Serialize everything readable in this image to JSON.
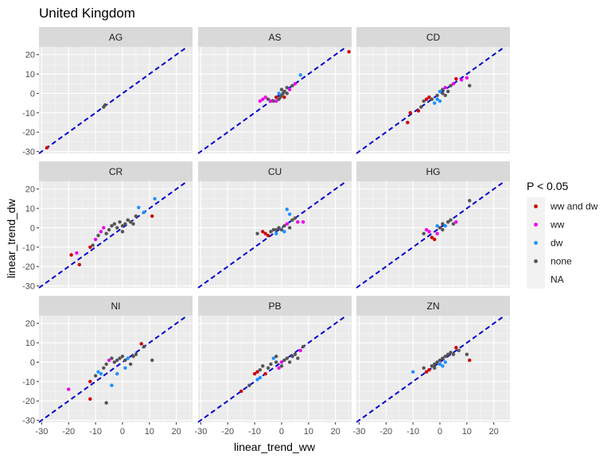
{
  "chart_data": {
    "type": "scatter",
    "title": "United Kingdom",
    "xlabel": "linear_trend_ww",
    "ylabel": "linear_trend_dw",
    "xlim": [
      -31,
      26
    ],
    "ylim": [
      -31,
      24
    ],
    "xticks": [
      -30,
      -20,
      -10,
      0,
      10,
      20
    ],
    "yticks": [
      -30,
      -20,
      -10,
      0,
      10,
      20
    ],
    "reference_line": {
      "slope": 1,
      "intercept": 0,
      "style": "dashed",
      "color": "#0000cc"
    },
    "grid": true,
    "legend": {
      "title": "P < 0.05",
      "position": "right",
      "entries": [
        {
          "key": "ww_and_dw",
          "label": "ww and dw",
          "color": "#cc0000"
        },
        {
          "key": "ww",
          "label": "ww",
          "color": "#ee00ee"
        },
        {
          "key": "dw",
          "label": "dw",
          "color": "#1e90ff"
        },
        {
          "key": "none",
          "label": "none",
          "color": "#555555"
        },
        {
          "key": "na",
          "label": "NA",
          "color": ""
        }
      ]
    },
    "panels": [
      {
        "label": "AG",
        "points": [
          {
            "x": -28,
            "y": -28,
            "g": "ww_and_dw"
          },
          {
            "x": -7,
            "y": -7,
            "g": "none"
          },
          {
            "x": -6.5,
            "y": -6,
            "g": "none"
          }
        ]
      },
      {
        "label": "AS",
        "points": [
          {
            "x": 25,
            "y": 21.5,
            "g": "ww_and_dw"
          },
          {
            "x": 7,
            "y": 9.5,
            "g": "dw"
          },
          {
            "x": 5,
            "y": 5,
            "g": "ww"
          },
          {
            "x": 4,
            "y": 4,
            "g": "none"
          },
          {
            "x": 3,
            "y": 2,
            "g": "ww"
          },
          {
            "x": 2,
            "y": 3,
            "g": "none"
          },
          {
            "x": 1,
            "y": 1,
            "g": "none"
          },
          {
            "x": 0.5,
            "y": 0,
            "g": "none"
          },
          {
            "x": 0,
            "y": -1,
            "g": "none"
          },
          {
            "x": -0.5,
            "y": -2,
            "g": "none"
          },
          {
            "x": -1,
            "y": 0,
            "g": "dw"
          },
          {
            "x": -1,
            "y": -3,
            "g": "none"
          },
          {
            "x": -2,
            "y": -2,
            "g": "ww_and_dw"
          },
          {
            "x": -3,
            "y": -4,
            "g": "none"
          },
          {
            "x": -4,
            "y": -4,
            "g": "ww"
          },
          {
            "x": -5,
            "y": -3,
            "g": "none"
          },
          {
            "x": -6,
            "y": -2,
            "g": "ww"
          },
          {
            "x": -7,
            "y": -3,
            "g": "ww"
          },
          {
            "x": -8,
            "y": -4,
            "g": "ww"
          },
          {
            "x": -2,
            "y": -4,
            "g": "ww"
          },
          {
            "x": 1,
            "y": -2,
            "g": "ww_and_dw"
          },
          {
            "x": 0,
            "y": 2,
            "g": "none"
          },
          {
            "x": 2,
            "y": 0,
            "g": "none"
          }
        ]
      },
      {
        "label": "CD",
        "points": [
          {
            "x": -12,
            "y": -15,
            "g": "ww_and_dw"
          },
          {
            "x": -11,
            "y": -10,
            "g": "ww_and_dw"
          },
          {
            "x": -8,
            "y": -9,
            "g": "ww_and_dw"
          },
          {
            "x": -7,
            "y": -7,
            "g": "none"
          },
          {
            "x": -6,
            "y": -4,
            "g": "none"
          },
          {
            "x": -5,
            "y": -3,
            "g": "ww_and_dw"
          },
          {
            "x": -4,
            "y": -2,
            "g": "ww_and_dw"
          },
          {
            "x": -3,
            "y": -3,
            "g": "none"
          },
          {
            "x": -2,
            "y": -5,
            "g": "dw"
          },
          {
            "x": -1,
            "y": -1,
            "g": "none"
          },
          {
            "x": 0,
            "y": 1,
            "g": "dw"
          },
          {
            "x": 1,
            "y": 0,
            "g": "none"
          },
          {
            "x": 1,
            "y": 2,
            "g": "none"
          },
          {
            "x": 2,
            "y": -1,
            "g": "none"
          },
          {
            "x": 2,
            "y": 3,
            "g": "ww"
          },
          {
            "x": 3,
            "y": 1,
            "g": "none"
          },
          {
            "x": 4,
            "y": 4,
            "g": "none"
          },
          {
            "x": 5,
            "y": 5,
            "g": "ww"
          },
          {
            "x": 6,
            "y": 7.5,
            "g": "ww_and_dw"
          },
          {
            "x": 8,
            "y": 7,
            "g": "ww"
          },
          {
            "x": 10,
            "y": 8,
            "g": "ww"
          },
          {
            "x": 11,
            "y": 4,
            "g": "none"
          },
          {
            "x": 0,
            "y": -4,
            "g": "dw"
          },
          {
            "x": -1,
            "y": -3,
            "g": "dw"
          }
        ]
      },
      {
        "label": "CR",
        "points": [
          {
            "x": -19,
            "y": -14,
            "g": "ww_and_dw"
          },
          {
            "x": -16,
            "y": -19,
            "g": "ww_and_dw"
          },
          {
            "x": -17,
            "y": -13,
            "g": "ww"
          },
          {
            "x": -12,
            "y": -10,
            "g": "ww_and_dw"
          },
          {
            "x": -11,
            "y": -9,
            "g": "none"
          },
          {
            "x": -10,
            "y": -6,
            "g": "ww"
          },
          {
            "x": -9,
            "y": -4,
            "g": "none"
          },
          {
            "x": -8,
            "y": -2,
            "g": "ww"
          },
          {
            "x": -7,
            "y": 0,
            "g": "ww"
          },
          {
            "x": -6,
            "y": -3,
            "g": "none"
          },
          {
            "x": -5,
            "y": -1,
            "g": "none"
          },
          {
            "x": -4,
            "y": 1,
            "g": "none"
          },
          {
            "x": -3,
            "y": 2,
            "g": "none"
          },
          {
            "x": -2,
            "y": 0,
            "g": "none"
          },
          {
            "x": -1,
            "y": 3,
            "g": "none"
          },
          {
            "x": 0,
            "y": 1,
            "g": "none"
          },
          {
            "x": 1,
            "y": 2,
            "g": "none"
          },
          {
            "x": 2,
            "y": 4,
            "g": "none"
          },
          {
            "x": 3,
            "y": 3,
            "g": "none"
          },
          {
            "x": 4,
            "y": 2,
            "g": "none"
          },
          {
            "x": 5,
            "y": 6,
            "g": "none"
          },
          {
            "x": 6,
            "y": 10.5,
            "g": "dw"
          },
          {
            "x": 8,
            "y": 8,
            "g": "dw"
          },
          {
            "x": 11,
            "y": 6,
            "g": "ww_and_dw"
          },
          {
            "x": 12,
            "y": 15,
            "g": "dw"
          },
          {
            "x": 0,
            "y": -2,
            "g": "none"
          }
        ]
      },
      {
        "label": "CU",
        "points": [
          {
            "x": -9,
            "y": -3,
            "g": "none"
          },
          {
            "x": -7,
            "y": -2,
            "g": "ww_and_dw"
          },
          {
            "x": -6,
            "y": -3,
            "g": "ww_and_dw"
          },
          {
            "x": -5,
            "y": -4,
            "g": "ww_and_dw"
          },
          {
            "x": -4,
            "y": -2,
            "g": "none"
          },
          {
            "x": -3,
            "y": -1,
            "g": "none"
          },
          {
            "x": -2,
            "y": -3,
            "g": "dw"
          },
          {
            "x": -1,
            "y": 0,
            "g": "none"
          },
          {
            "x": 0,
            "y": -1,
            "g": "none"
          },
          {
            "x": 1,
            "y": 1,
            "g": "none"
          },
          {
            "x": 2,
            "y": 2,
            "g": "ww"
          },
          {
            "x": 3,
            "y": 0,
            "g": "none"
          },
          {
            "x": 4,
            "y": 4,
            "g": "none"
          },
          {
            "x": 5,
            "y": 5,
            "g": "none"
          },
          {
            "x": 6,
            "y": 3,
            "g": "ww"
          },
          {
            "x": 8,
            "y": 3,
            "g": "ww"
          },
          {
            "x": 2,
            "y": 9.5,
            "g": "dw"
          },
          {
            "x": 3,
            "y": 7,
            "g": "dw"
          },
          {
            "x": -2,
            "y": -1,
            "g": "none"
          },
          {
            "x": 1,
            "y": -2,
            "g": "dw"
          }
        ]
      },
      {
        "label": "HG",
        "points": [
          {
            "x": -6,
            "y": -3,
            "g": "none"
          },
          {
            "x": -5,
            "y": -1,
            "g": "ww"
          },
          {
            "x": -4,
            "y": -2,
            "g": "ww"
          },
          {
            "x": -3,
            "y": -5,
            "g": "ww_and_dw"
          },
          {
            "x": -2,
            "y": -6,
            "g": "ww_and_dw"
          },
          {
            "x": -1,
            "y": -3,
            "g": "ww"
          },
          {
            "x": 0,
            "y": 0,
            "g": "none"
          },
          {
            "x": 1,
            "y": 2,
            "g": "none"
          },
          {
            "x": 2,
            "y": 1,
            "g": "dw"
          },
          {
            "x": 3,
            "y": 3,
            "g": "none"
          },
          {
            "x": 4,
            "y": 4,
            "g": "none"
          },
          {
            "x": 5,
            "y": 2,
            "g": "none"
          },
          {
            "x": 6,
            "y": 3,
            "g": "ww"
          },
          {
            "x": 11,
            "y": 14,
            "g": "none"
          },
          {
            "x": -1,
            "y": 1,
            "g": "dw"
          },
          {
            "x": 1,
            "y": -1,
            "g": "none"
          }
        ]
      },
      {
        "label": "NI",
        "points": [
          {
            "x": -20,
            "y": -14,
            "g": "ww"
          },
          {
            "x": -12,
            "y": -19,
            "g": "ww_and_dw"
          },
          {
            "x": -12,
            "y": -10,
            "g": "ww_and_dw"
          },
          {
            "x": -10,
            "y": -7,
            "g": "none"
          },
          {
            "x": -9,
            "y": -5,
            "g": "dw"
          },
          {
            "x": -8,
            "y": -6,
            "g": "dw"
          },
          {
            "x": -7,
            "y": -3,
            "g": "none"
          },
          {
            "x": -6,
            "y": -1,
            "g": "none"
          },
          {
            "x": -5,
            "y": 1,
            "g": "ww"
          },
          {
            "x": -4,
            "y": 2,
            "g": "none"
          },
          {
            "x": -3,
            "y": 0,
            "g": "none"
          },
          {
            "x": -2,
            "y": 1,
            "g": "none"
          },
          {
            "x": -1,
            "y": 2,
            "g": "none"
          },
          {
            "x": 0,
            "y": 3,
            "g": "none"
          },
          {
            "x": 1,
            "y": 1,
            "g": "none"
          },
          {
            "x": 2,
            "y": 2,
            "g": "dw"
          },
          {
            "x": 3,
            "y": -1,
            "g": "none"
          },
          {
            "x": 4,
            "y": 3,
            "g": "none"
          },
          {
            "x": 5,
            "y": 4,
            "g": "none"
          },
          {
            "x": 7,
            "y": 9.5,
            "g": "ww_and_dw"
          },
          {
            "x": 8,
            "y": 8,
            "g": "none"
          },
          {
            "x": 11,
            "y": 1,
            "g": "none"
          },
          {
            "x": -6,
            "y": -21,
            "g": "none"
          },
          {
            "x": -4,
            "y": -12,
            "g": "dw"
          },
          {
            "x": -2,
            "y": -6,
            "g": "dw"
          },
          {
            "x": 1,
            "y": -3,
            "g": "dw"
          }
        ]
      },
      {
        "label": "PB",
        "points": [
          {
            "x": -15,
            "y": -15,
            "g": "ww_and_dw"
          },
          {
            "x": -12,
            "y": -12,
            "g": "none"
          },
          {
            "x": -9,
            "y": -9,
            "g": "dw"
          },
          {
            "x": -8,
            "y": -8,
            "g": "dw"
          },
          {
            "x": -10,
            "y": -6,
            "g": "ww_and_dw"
          },
          {
            "x": -9,
            "y": -5,
            "g": "ww_and_dw"
          },
          {
            "x": -8,
            "y": -4,
            "g": "none"
          },
          {
            "x": -7,
            "y": -2,
            "g": "none"
          },
          {
            "x": -6,
            "y": -6,
            "g": "ww_and_dw"
          },
          {
            "x": -5,
            "y": -3,
            "g": "none"
          },
          {
            "x": -4,
            "y": -1,
            "g": "none"
          },
          {
            "x": -3,
            "y": 2,
            "g": "dw"
          },
          {
            "x": -2,
            "y": 0,
            "g": "none"
          },
          {
            "x": -1,
            "y": -3,
            "g": "ww"
          },
          {
            "x": 0,
            "y": -2,
            "g": "none"
          },
          {
            "x": 1,
            "y": 1,
            "g": "none"
          },
          {
            "x": 2,
            "y": 2,
            "g": "none"
          },
          {
            "x": 3,
            "y": 0,
            "g": "none"
          },
          {
            "x": 4,
            "y": 3,
            "g": "none"
          },
          {
            "x": 5,
            "y": 4,
            "g": "none"
          },
          {
            "x": 6,
            "y": 2,
            "g": "none"
          },
          {
            "x": 7,
            "y": 6,
            "g": "ww"
          },
          {
            "x": 8,
            "y": 8,
            "g": "none"
          },
          {
            "x": -2,
            "y": 3,
            "g": "none"
          },
          {
            "x": 0,
            "y": 0,
            "g": "ww"
          }
        ]
      },
      {
        "label": "ZN",
        "points": [
          {
            "x": -10,
            "y": -5,
            "g": "dw"
          },
          {
            "x": -6,
            "y": -3,
            "g": "none"
          },
          {
            "x": -5,
            "y": -5,
            "g": "ww_and_dw"
          },
          {
            "x": -4,
            "y": -4,
            "g": "ww_and_dw"
          },
          {
            "x": -3,
            "y": -2,
            "g": "none"
          },
          {
            "x": -2,
            "y": -1,
            "g": "none"
          },
          {
            "x": -1,
            "y": 0,
            "g": "none"
          },
          {
            "x": 0,
            "y": 1,
            "g": "none"
          },
          {
            "x": 1,
            "y": -2,
            "g": "dw"
          },
          {
            "x": 1,
            "y": 2,
            "g": "none"
          },
          {
            "x": 2,
            "y": 0,
            "g": "dw"
          },
          {
            "x": 2,
            "y": 3,
            "g": "none"
          },
          {
            "x": 3,
            "y": 4,
            "g": "none"
          },
          {
            "x": 4,
            "y": 5,
            "g": "none"
          },
          {
            "x": 5,
            "y": 4,
            "g": "none"
          },
          {
            "x": 6,
            "y": 7.5,
            "g": "ww_and_dw"
          },
          {
            "x": 7,
            "y": 6,
            "g": "none"
          },
          {
            "x": 10,
            "y": 4,
            "g": "none"
          },
          {
            "x": 11,
            "y": 1,
            "g": "ww_and_dw"
          },
          {
            "x": -2,
            "y": -3,
            "g": "none"
          },
          {
            "x": 0,
            "y": -1,
            "g": "dw"
          }
        ]
      }
    ]
  }
}
